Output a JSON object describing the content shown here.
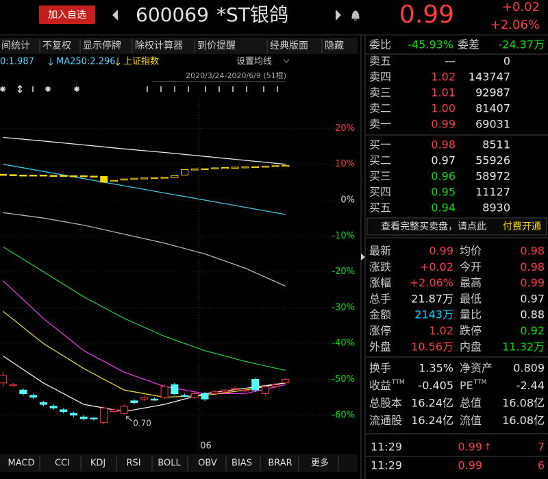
{
  "header": {
    "add_button": "加入自选",
    "code": "600069",
    "name": "*ST银鸽",
    "price": "0.99",
    "change": "+0.02",
    "change_pct": "+2.06%"
  },
  "toolbar": [
    "间统计",
    "不复权",
    "显示停牌",
    "除权计算器",
    "到价提醒",
    "经典版面",
    "隐藏"
  ],
  "chart": {
    "type": "candlestick",
    "legend": [
      {
        "label": "0:1.987",
        "color": "#4fd3ff"
      },
      {
        "label": "MA250:2.296",
        "color": "#4fd3ff"
      },
      {
        "label": "上证指数",
        "color": "#ffd800"
      }
    ],
    "ma_button": "设置均线",
    "range": "2020/3/24-2020/6/9 (51根)",
    "xlim": [
      -0.3,
      35
    ],
    "ylim": [
      -66,
      25
    ],
    "yticks": [
      {
        "value": 20,
        "label": "20%"
      },
      {
        "value": 10,
        "label": "10%"
      },
      {
        "value": 0,
        "label": "0%"
      },
      {
        "value": -10,
        "label": "-10%"
      },
      {
        "value": -20,
        "label": "-20%"
      },
      {
        "value": -30,
        "label": "-30%"
      },
      {
        "value": -40,
        "label": "-40%"
      },
      {
        "value": -50,
        "label": "-50%"
      },
      {
        "value": -60,
        "label": "-60%"
      }
    ],
    "grid": true,
    "x_marker": {
      "x": 19.4,
      "label": "06"
    },
    "annotation": {
      "x": 12,
      "y": -60,
      "label": "0.70"
    },
    "candles": [
      {
        "x": 0,
        "open": -51,
        "close": -49,
        "high": -48,
        "low": -52
      },
      {
        "x": 1,
        "open": -51.5,
        "close": -51.5,
        "high": -51,
        "low": -52
      },
      {
        "x": 2,
        "open": -53,
        "close": -54,
        "high": -52.5,
        "low": -54.5
      },
      {
        "x": 3,
        "open": -54.5,
        "close": -55,
        "high": -54,
        "low": -55.5
      },
      {
        "x": 4,
        "open": -56.5,
        "close": -57,
        "high": -56,
        "low": -57.5
      },
      {
        "x": 5,
        "open": -57.5,
        "close": -58,
        "high": -57,
        "low": -58.5
      },
      {
        "x": 6,
        "open": -58.5,
        "close": -59,
        "high": -58,
        "low": -59.5
      },
      {
        "x": 7,
        "open": -59.5,
        "close": -60,
        "high": -59,
        "low": -60.5
      },
      {
        "x": 8,
        "open": -60.5,
        "close": -61,
        "high": -60,
        "low": -61.5
      },
      {
        "x": 9,
        "open": -60.8,
        "close": -61,
        "high": -60.5,
        "low": -61.5
      },
      {
        "x": 10,
        "open": -62,
        "close": -58,
        "high": -57.5,
        "low": -62.5
      },
      {
        "x": 11,
        "open": -59,
        "close": -58.5,
        "high": -58,
        "low": -59.5
      },
      {
        "x": 12,
        "open": -59.5,
        "close": -57.5,
        "high": -57,
        "low": -60
      },
      {
        "x": 13,
        "open": -56,
        "close": -56.5,
        "high": -55.5,
        "low": -57
      },
      {
        "x": 14,
        "open": -55.5,
        "close": -55,
        "high": -54.5,
        "low": -56
      },
      {
        "x": 15,
        "open": -55.5,
        "close": -55.8,
        "high": -55,
        "low": -56
      },
      {
        "x": 16,
        "open": -55,
        "close": -52,
        "high": -51.5,
        "low": -55.5
      },
      {
        "x": 17,
        "open": -51.5,
        "close": -54,
        "high": -51,
        "low": -54.5
      },
      {
        "x": 18,
        "open": -54.5,
        "close": -54.6,
        "high": -54,
        "low": -55
      },
      {
        "x": 19,
        "open": -55,
        "close": -54,
        "high": -53.5,
        "low": -55.5
      },
      {
        "x": 20,
        "open": -54,
        "close": -55.5,
        "high": -53.5,
        "low": -56
      },
      {
        "x": 21,
        "open": -54,
        "close": -53.5,
        "high": -53,
        "low": -54.5
      },
      {
        "x": 22,
        "open": -53.5,
        "close": -53,
        "high": -52.5,
        "low": -54
      },
      {
        "x": 23,
        "open": -52.8,
        "close": -52.5,
        "high": -52,
        "low": -53
      },
      {
        "x": 24,
        "open": -53,
        "close": -53,
        "high": -52.5,
        "low": -53.5
      },
      {
        "x": 25,
        "open": -50,
        "close": -53,
        "high": -49.5,
        "low": -53.5
      },
      {
        "x": 26,
        "open": -54,
        "close": -52,
        "high": -51.5,
        "low": -54.5
      },
      {
        "x": 27,
        "open": -52,
        "close": -51.5,
        "high": -51,
        "low": -52.5
      },
      {
        "x": 28,
        "open": -51,
        "close": -50,
        "high": -49.5,
        "low": -51
      }
    ],
    "index_color": "#ffd800",
    "index_candles": [
      {
        "x": 0,
        "open": 7.2,
        "close": 7.0
      },
      {
        "x": 1,
        "open": 7.1,
        "close": 6.9
      },
      {
        "x": 2,
        "open": 7.0,
        "close": 6.9
      },
      {
        "x": 3,
        "open": 7.0,
        "close": 6.9
      },
      {
        "x": 4,
        "open": 7.0,
        "close": 6.8
      },
      {
        "x": 5,
        "open": 6.9,
        "close": 6.8
      },
      {
        "x": 6,
        "open": 6.9,
        "close": 6.7
      },
      {
        "x": 7,
        "open": 6.8,
        "close": 6.7
      },
      {
        "x": 8,
        "open": 6.8,
        "close": 6.6
      },
      {
        "x": 9,
        "open": 6.7,
        "close": 6.5
      },
      {
        "x": 10,
        "open": 6.6,
        "close": 5.0
      },
      {
        "x": 11,
        "open": 5.2,
        "close": 5.5
      },
      {
        "x": 12,
        "open": 5.6,
        "close": 5.9
      },
      {
        "x": 13,
        "open": 5.8,
        "close": 6.1
      },
      {
        "x": 14,
        "open": 6.0,
        "close": 6.2
      },
      {
        "x": 15,
        "open": 6.1,
        "close": 6.3
      },
      {
        "x": 16,
        "open": 6.2,
        "close": 6.4
      },
      {
        "x": 17,
        "open": 6.3,
        "close": 6.8
      },
      {
        "x": 18,
        "open": 7.0,
        "close": 8.5
      },
      {
        "x": 19,
        "open": 8.5,
        "close": 8.7
      },
      {
        "x": 20,
        "open": 8.6,
        "close": 8.8
      },
      {
        "x": 21,
        "open": 8.7,
        "close": 9.0
      },
      {
        "x": 22,
        "open": 8.8,
        "close": 9.1
      },
      {
        "x": 23,
        "open": 8.9,
        "close": 9.2
      },
      {
        "x": 24,
        "open": 9.0,
        "close": 9.3
      },
      {
        "x": 25,
        "open": 9.1,
        "close": 9.4
      },
      {
        "x": 26,
        "open": 9.2,
        "close": 9.5
      },
      {
        "x": 27,
        "open": 9.3,
        "close": 9.6
      },
      {
        "x": 28,
        "open": 9.4,
        "close": 9.7
      }
    ],
    "lines": [
      {
        "color": "#e6e6e6",
        "x": [
          0,
          4,
          8,
          12,
          16,
          20,
          24,
          28
        ],
        "values": [
          17.5,
          16.5,
          15.4,
          14.3,
          13.3,
          12.2,
          11.1,
          10.0
        ]
      },
      {
        "color": "#3cc8e6",
        "x": [
          0,
          4,
          8,
          12,
          16,
          20,
          24,
          28
        ],
        "values": [
          10,
          8,
          6,
          4,
          2,
          0,
          -2,
          -4
        ]
      },
      {
        "color": "#b4b4b4",
        "x": [
          0,
          4,
          8,
          12,
          16,
          20,
          24,
          28
        ],
        "values": [
          -3.5,
          -5,
          -7,
          -9.5,
          -12,
          -15,
          -19,
          -24
        ]
      },
      {
        "color": "#22c83c",
        "x": [
          0,
          4,
          8,
          12,
          16,
          20,
          24,
          28
        ],
        "values": [
          -13,
          -20,
          -27,
          -33,
          -38,
          -42,
          -45,
          -47.5
        ]
      },
      {
        "color": "#e632e6",
        "x": [
          0,
          4,
          8,
          12,
          16,
          20,
          24,
          28
        ],
        "values": [
          -22.5,
          -33,
          -42,
          -48,
          -52,
          -54,
          -54,
          -51.5
        ]
      },
      {
        "color": "#e6d232",
        "x": [
          0,
          4,
          8,
          12,
          16,
          20,
          24,
          28
        ],
        "values": [
          -31,
          -40,
          -47,
          -53,
          -55,
          -54.5,
          -53,
          -51
        ]
      },
      {
        "color": "#f0f0f0",
        "x": [
          0,
          4,
          8,
          12,
          16,
          20,
          24,
          28
        ],
        "values": [
          -43.5,
          -51,
          -57,
          -59,
          -57,
          -54,
          -52.5,
          -51
        ]
      }
    ]
  },
  "tabs": [
    "MACD",
    "CCI",
    "KDJ",
    "RSI",
    "BOLL",
    "OBV",
    "BIAS",
    "BRAR",
    "更多"
  ],
  "order_book": {
    "ratio_label": "委比",
    "ratio": "-45.93%",
    "diff_label": "委差",
    "diff": "-24.37万",
    "summary_color": "#00e000",
    "asks": [
      {
        "label": "卖五",
        "price": "—",
        "volume": "0",
        "color": "#e8e8e8"
      },
      {
        "label": "卖四",
        "price": "1.02",
        "volume": "143747",
        "color": "#ff3b3b"
      },
      {
        "label": "卖三",
        "price": "1.01",
        "volume": "92987",
        "color": "#ff3b3b"
      },
      {
        "label": "卖二",
        "price": "1.00",
        "volume": "81407",
        "color": "#ff3b3b"
      },
      {
        "label": "卖一",
        "price": "0.99",
        "volume": "69031",
        "color": "#ff3b3b"
      }
    ],
    "bids": [
      {
        "label": "买一",
        "price": "0.98",
        "volume": "8511",
        "color": "#ff3b3b"
      },
      {
        "label": "买二",
        "price": "0.97",
        "volume": "55926",
        "color": "#e8e8e8"
      },
      {
        "label": "买三",
        "price": "0.96",
        "volume": "58972",
        "color": "#00e000"
      },
      {
        "label": "买四",
        "price": "0.95",
        "volume": "11127",
        "color": "#00e000"
      },
      {
        "label": "买五",
        "price": "0.94",
        "volume": "8930",
        "color": "#00e000"
      }
    ],
    "link_text": "查看完整买卖盘，请点此",
    "link_action": "付费开通"
  },
  "stats": [
    [
      {
        "label": "最新",
        "value": "0.99",
        "color": "#ff3b3b"
      },
      {
        "label": "均价",
        "value": "0.98",
        "color": "#ff3b3b"
      }
    ],
    [
      {
        "label": "涨跌",
        "value": "+0.02",
        "color": "#ff3b3b"
      },
      {
        "label": "今开",
        "value": "0.98",
        "color": "#ff3b3b"
      }
    ],
    [
      {
        "label": "涨幅",
        "value": "+2.06%",
        "color": "#ff3b3b"
      },
      {
        "label": "最高",
        "value": "0.99",
        "color": "#ff3b3b"
      }
    ],
    [
      {
        "label": "总手",
        "value": "21.87万",
        "color": "#e8e8e8"
      },
      {
        "label": "最低",
        "value": "0.97",
        "color": "#e8e8e8"
      }
    ],
    [
      {
        "label": "金额",
        "value": "2143万",
        "color": "#00d0ff"
      },
      {
        "label": "量比",
        "value": "0.88",
        "color": "#e8e8e8"
      }
    ],
    [
      {
        "label": "涨停",
        "value": "1.02",
        "color": "#ff3b3b"
      },
      {
        "label": "跌停",
        "value": "0.92",
        "color": "#00e000"
      }
    ],
    [
      {
        "label": "外盘",
        "value": "10.56万",
        "color": "#ff3b3b"
      },
      {
        "label": "内盘",
        "value": "11.32万",
        "color": "#00e000"
      }
    ]
  ],
  "fundamentals": [
    [
      {
        "label": "换手",
        "value": "1.35%"
      },
      {
        "label": "净资产",
        "value": "0.809"
      }
    ],
    [
      {
        "label": "收益",
        "sup": "TTM",
        "value": "-0.405"
      },
      {
        "label": "PE",
        "sup": "TTM",
        "value": "-2.44"
      }
    ],
    [
      {
        "label": "总股本",
        "value": "16.24亿"
      },
      {
        "label": "总值",
        "value": "16.08亿"
      }
    ],
    [
      {
        "label": "流通股",
        "value": "16.24亿"
      },
      {
        "label": "流值",
        "value": "16.08亿"
      }
    ]
  ],
  "trades": [
    {
      "time": "11:29",
      "price": "0.99",
      "arrow": "↑",
      "volume": "7"
    },
    {
      "time": "11:29",
      "price": "0.99",
      "volume": "6"
    }
  ]
}
